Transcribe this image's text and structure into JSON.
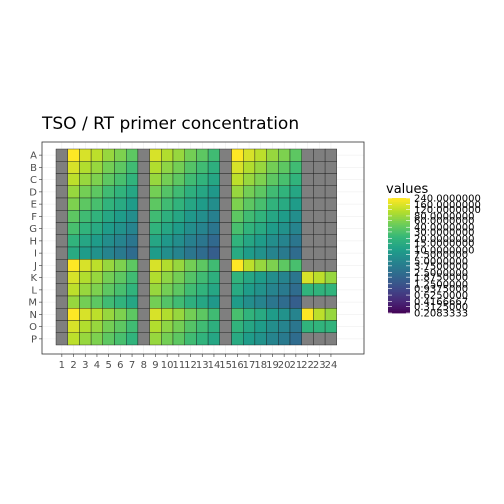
{
  "chart_data": {
    "type": "heatmap",
    "title": "TSO / RT primer concentration",
    "xlabel": "",
    "ylabel": "",
    "rows": [
      "A",
      "B",
      "C",
      "D",
      "E",
      "F",
      "G",
      "H",
      "I",
      "J",
      "K",
      "L",
      "M",
      "N",
      "O",
      "P"
    ],
    "columns": [
      "1",
      "2",
      "3",
      "4",
      "5",
      "6",
      "7",
      "8",
      "9",
      "10",
      "11",
      "12",
      "13",
      "14",
      "15",
      "16",
      "17",
      "18",
      "19",
      "20",
      "21",
      "22",
      "23",
      "24"
    ],
    "legend": {
      "title": "values",
      "position": "right",
      "labels": [
        "240.0000000",
        "160.0000000",
        "120.0000000",
        "80.0000000",
        "60.0000000",
        "40.0000000",
        "30.0000000",
        "20.0000000",
        "15.0000000",
        "10.0000000",
        "7.5000000",
        "5.0000000",
        "3.7500000",
        "2.5000000",
        "1.8750000",
        "1.2500000",
        "0.9375000",
        "0.6250000",
        "0.4166667",
        "0.3125000",
        "0.2083333"
      ]
    },
    "na_color": "#7f7f7f",
    "grid": true,
    "block_rows": [
      {
        "rows": [
          "A",
          "B",
          "C",
          "D",
          "E",
          "F",
          "G",
          "H",
          "I"
        ],
        "columns": [
          "2",
          "3",
          "4",
          "5",
          "6",
          "7"
        ],
        "top_left": 240,
        "steps": [
          1,
          1.5,
          2,
          3,
          4,
          6
        ],
        "row_steps": [
          1,
          1.5,
          2,
          3,
          4,
          6,
          8,
          12,
          16
        ]
      },
      {
        "rows": [
          "A",
          "B",
          "C",
          "D",
          "E",
          "F",
          "G",
          "H",
          "I"
        ],
        "columns": [
          "9",
          "10",
          "11",
          "12",
          "13",
          "14"
        ],
        "top_left": 160,
        "steps": [
          1,
          1.5,
          2,
          3,
          4,
          6
        ],
        "row_steps": [
          1,
          1.5,
          2,
          3,
          4,
          6,
          8,
          12,
          16
        ]
      },
      {
        "rows": [
          "A",
          "B",
          "C",
          "D",
          "E",
          "F",
          "G",
          "H",
          "I"
        ],
        "columns": [
          "16",
          "17",
          "18",
          "19",
          "20",
          "21"
        ],
        "top_left": 240,
        "steps": [
          1,
          1.5,
          2,
          3,
          4,
          6
        ],
        "row_steps": [
          1,
          1.5,
          2,
          3,
          4,
          6,
          8,
          12,
          16
        ]
      },
      {
        "rows": [
          "J",
          "K",
          "L",
          "M",
          "N",
          "O",
          "P"
        ],
        "columns": [
          "2",
          "3",
          "4",
          "5",
          "6",
          "7"
        ],
        "top_left": 240,
        "steps": [
          1,
          1.5,
          2,
          3,
          4,
          6
        ],
        "row_steps": [
          1,
          1.5,
          2,
          3,
          1,
          1.5,
          2
        ]
      },
      {
        "rows": [
          "J",
          "K",
          "L",
          "M",
          "N",
          "O",
          "P"
        ],
        "columns": [
          "9",
          "10",
          "11",
          "12",
          "13",
          "14"
        ],
        "top_left": 160,
        "steps": [
          1,
          1.5,
          2,
          3,
          4,
          6
        ],
        "row_steps": [
          1,
          1.5,
          2,
          3,
          1,
          1.5,
          2
        ]
      },
      {
        "rows": [
          "J",
          "K",
          "L",
          "M",
          "N",
          "O",
          "P"
        ],
        "columns": [
          "16",
          "17",
          "18",
          "19",
          "20",
          "21"
        ],
        "top_left": 30,
        "steps": [
          1,
          1.5,
          2,
          3,
          4,
          6
        ],
        "row_steps": [
          1,
          1.5,
          2,
          3,
          1,
          1.5,
          2
        ]
      }
    ],
    "extra_cells": [
      {
        "row": "J",
        "column": "16",
        "value": 240
      },
      {
        "row": "J",
        "column": "17",
        "value": 120
      },
      {
        "row": "J",
        "column": "18",
        "value": 80
      },
      {
        "row": "J",
        "column": "19",
        "value": 60
      },
      {
        "row": "J",
        "column": "20",
        "value": 40
      },
      {
        "row": "J",
        "column": "21",
        "value": 30
      },
      {
        "row": "K",
        "column": "22",
        "value": 160
      },
      {
        "row": "K",
        "column": "23",
        "value": 120
      },
      {
        "row": "K",
        "column": "24",
        "value": 80
      },
      {
        "row": "L",
        "column": "22",
        "value": 20
      },
      {
        "row": "L",
        "column": "23",
        "value": 20
      },
      {
        "row": "L",
        "column": "24",
        "value": 20
      },
      {
        "row": "N",
        "column": "22",
        "value": 240
      },
      {
        "row": "N",
        "column": "23",
        "value": 120
      },
      {
        "row": "N",
        "column": "24",
        "value": 80
      },
      {
        "row": "O",
        "column": "22",
        "value": 20
      },
      {
        "row": "O",
        "column": "23",
        "value": 20
      },
      {
        "row": "O",
        "column": "24",
        "value": 20
      }
    ]
  }
}
